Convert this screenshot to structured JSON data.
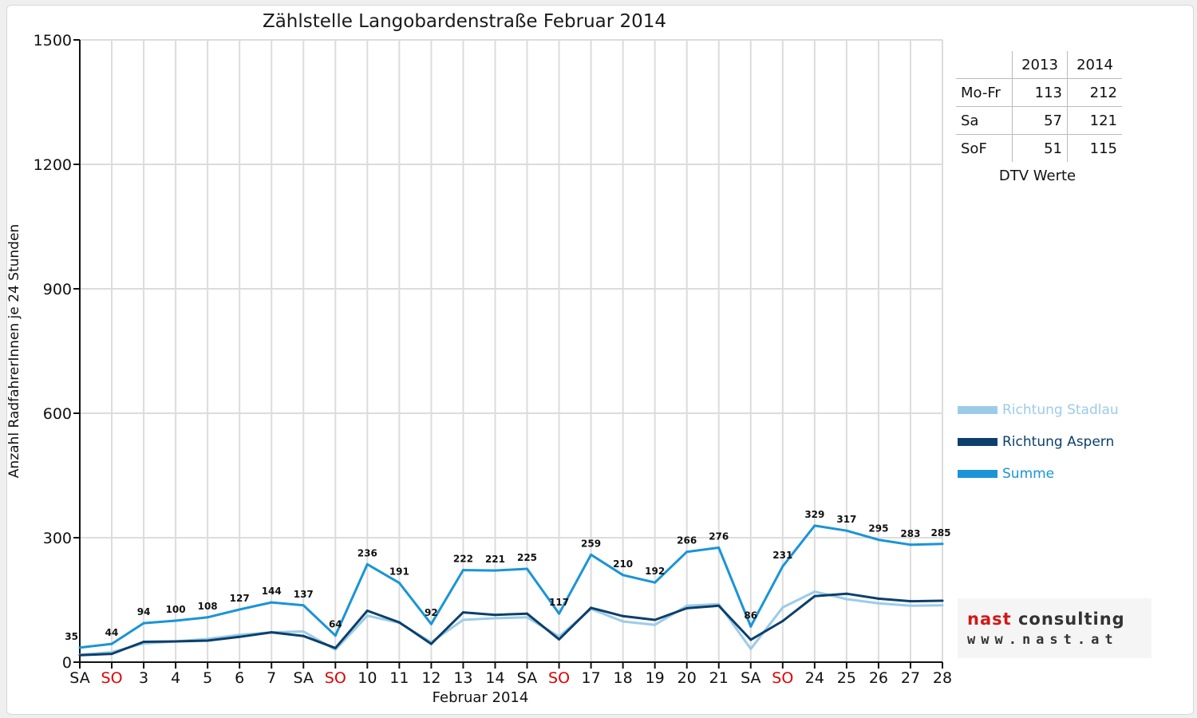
{
  "chart_data": {
    "type": "line",
    "title": "Zählstelle Langobardenstraße Februar 2014",
    "xlabel": "Februar 2014",
    "ylabel": "Anzahl RadfahrerInnen je 24 Stunden",
    "ylim": [
      0,
      1500
    ],
    "yticks": [
      0,
      300,
      600,
      900,
      1200,
      1500
    ],
    "grid": true,
    "legend_position": "right",
    "categories": [
      "SA",
      "SO",
      "3",
      "4",
      "5",
      "6",
      "7",
      "SA",
      "SO",
      "10",
      "11",
      "12",
      "13",
      "14",
      "SA",
      "SO",
      "17",
      "18",
      "19",
      "20",
      "21",
      "SA",
      "SO",
      "24",
      "25",
      "26",
      "27",
      "28"
    ],
    "category_colors": [
      "#111111",
      "#e00000",
      "#111111",
      "#111111",
      "#111111",
      "#111111",
      "#111111",
      "#111111",
      "#e00000",
      "#111111",
      "#111111",
      "#111111",
      "#111111",
      "#111111",
      "#111111",
      "#e00000",
      "#111111",
      "#111111",
      "#111111",
      "#111111",
      "#111111",
      "#111111",
      "#e00000",
      "#111111",
      "#111111",
      "#111111",
      "#111111",
      "#111111"
    ],
    "series": [
      {
        "name": "Richtung Stadlau",
        "color": "#9ccbe8",
        "values": [
          18,
          24,
          45,
          50,
          56,
          66,
          72,
          74,
          30,
          112,
          95,
          48,
          102,
          106,
          108,
          62,
          128,
          98,
          90,
          136,
          140,
          32,
          132,
          170,
          152,
          142,
          136,
          137
        ]
      },
      {
        "name": "Richtung Aspern",
        "color": "#0c3f6b",
        "values": [
          17,
          20,
          49,
          50,
          52,
          61,
          72,
          63,
          34,
          124,
          96,
          44,
          120,
          114,
          117,
          55,
          131,
          111,
          102,
          130,
          136,
          54,
          99,
          159,
          165,
          153,
          147,
          148
        ]
      },
      {
        "name": "Summe",
        "color": "#1a94d6",
        "values": [
          35,
          44,
          94,
          100,
          108,
          127,
          144,
          137,
          64,
          236,
          191,
          92,
          222,
          221,
          225,
          117,
          259,
          210,
          192,
          266,
          276,
          86,
          231,
          329,
          317,
          295,
          283,
          285
        ]
      }
    ],
    "data_labels": [
      "35",
      "44",
      "94",
      "100",
      "108",
      "127",
      "144",
      "137",
      "64",
      "236",
      "191",
      "92",
      "222",
      "221",
      "225",
      "117",
      "259",
      "210",
      "192",
      "266",
      "276",
      "86",
      "231",
      "329",
      "317",
      "295",
      "283",
      "285"
    ]
  },
  "dtv_table": {
    "headers": [
      "",
      "2013",
      "2014"
    ],
    "rows": [
      {
        "label": "Mo-Fr",
        "v2013": "113",
        "v2014": "212"
      },
      {
        "label": "Sa",
        "v2013": "57",
        "v2014": "121"
      },
      {
        "label": "SoF",
        "v2013": "51",
        "v2014": "115"
      }
    ],
    "caption": "DTV Werte"
  },
  "logo": {
    "brand_main": "nast",
    "brand_rest": "consulting",
    "url": "www.nast.at"
  }
}
